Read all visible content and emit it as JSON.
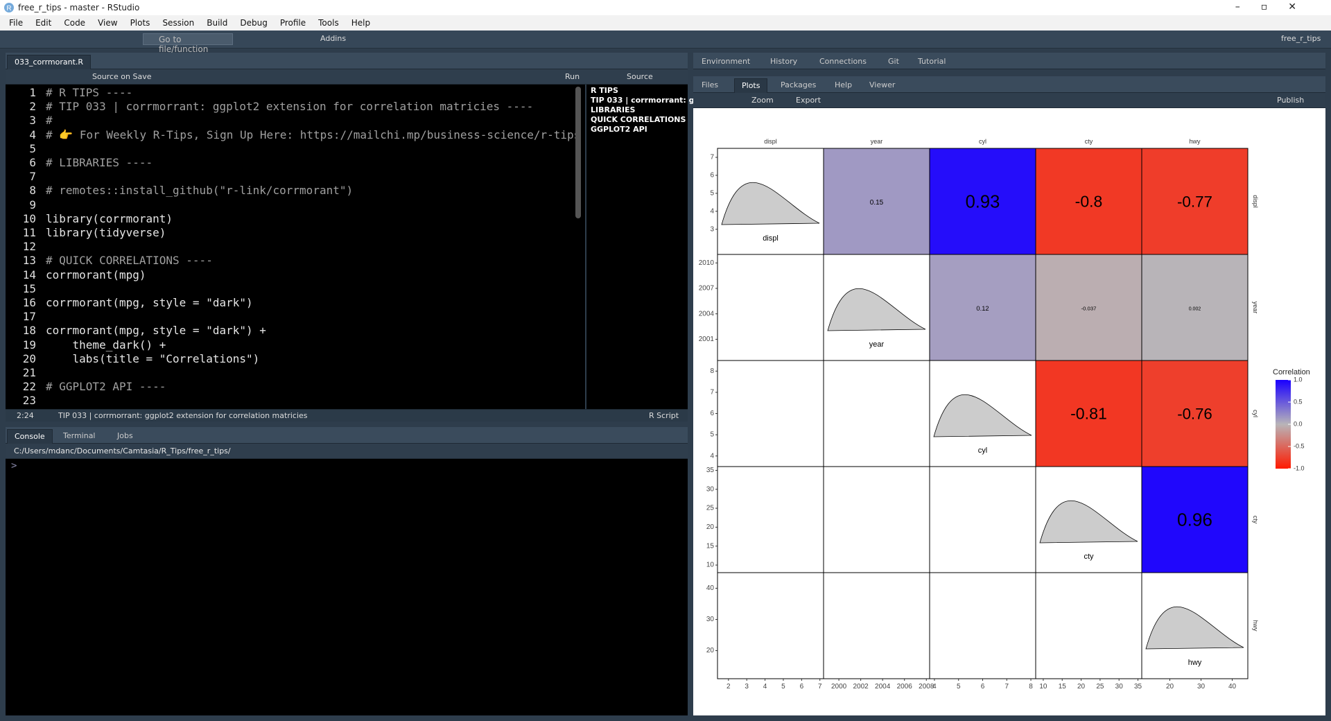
{
  "window": {
    "title": "free_r_tips - master - RStudio",
    "project": "free_r_tips"
  },
  "menu": [
    "File",
    "Edit",
    "Code",
    "View",
    "Plots",
    "Session",
    "Build",
    "Debug",
    "Profile",
    "Tools",
    "Help"
  ],
  "toolbar": {
    "goto": "Go to file/function",
    "addins": "Addins"
  },
  "editor": {
    "tab": "033_corrmorant.R",
    "source_on_save": "Source on Save",
    "run": "Run",
    "source": "Source",
    "lines": [
      {
        "number": 1,
        "text": "# R TIPS ----",
        "style": "comment"
      },
      {
        "number": 2,
        "text": "# TIP 033 | corrmorrant: ggplot2 extension for correlation matricies ----",
        "style": "comment"
      },
      {
        "number": 3,
        "text": "#",
        "style": "comment"
      },
      {
        "number": 4,
        "text": "# 👉 For Weekly R-Tips, Sign Up Here: https://mailchi.mp/business-science/r-tips",
        "style": "comment"
      },
      {
        "number": 5
      },
      {
        "number": 6,
        "text": "# LIBRARIES ----",
        "style": "comment"
      },
      {
        "number": 7
      },
      {
        "number": 8,
        "text": "# remotes::install_github(\"r-link/corrmorant\")",
        "style": "comment"
      },
      {
        "number": 9
      },
      {
        "number": 10,
        "text": "library(corrmorant)",
        "style": "code"
      },
      {
        "number": 11,
        "text": "library(tidyverse)",
        "style": "code"
      },
      {
        "number": 12
      },
      {
        "number": 13,
        "text": "# QUICK CORRELATIONS ----",
        "style": "comment"
      },
      {
        "number": 14,
        "text": "corrmorant(mpg)",
        "style": "code"
      },
      {
        "number": 15
      },
      {
        "number": 16,
        "text": "corrmorant(mpg, style = \"dark\")",
        "style": "code"
      },
      {
        "number": 17
      },
      {
        "number": 18,
        "text": "corrmorant(mpg, style = \"dark\") +",
        "style": "code"
      },
      {
        "number": 19,
        "text": "    theme_dark() +",
        "style": "code"
      },
      {
        "number": 20,
        "text": "    labs(title = \"Correlations\")",
        "style": "code"
      },
      {
        "number": 21
      },
      {
        "number": 22,
        "text": "# GGPLOT2 API ----",
        "style": "comment"
      },
      {
        "number": 23
      }
    ],
    "outline": [
      "R TIPS",
      "TIP 033 | corrmorrant: g...",
      "LIBRARIES",
      "QUICK CORRELATIONS",
      "GGPLOT2 API"
    ],
    "position": "2:24",
    "scope": "TIP 033 | corrmorrant: ggplot2 extension for correlation matricies",
    "file_type": "R Script"
  },
  "console": {
    "tabs": [
      "Console",
      "Terminal",
      "Jobs"
    ],
    "path": "C:/Users/mdanc/Documents/Camtasia/R_Tips/free_r_tips/",
    "prompt": ">"
  },
  "env_pane": {
    "tabs": [
      "Environment",
      "History",
      "Connections",
      "Git",
      "Tutorial"
    ]
  },
  "files_pane": {
    "tabs": [
      "Files",
      "Plots",
      "Packages",
      "Help",
      "Viewer"
    ],
    "zoom": "Zoom",
    "export": "Export",
    "publish": "Publish"
  },
  "plot": {
    "variables": [
      {
        "name": "displ",
        "xlim": [
          1.4,
          7.2
        ],
        "xticks": [
          2,
          3,
          4,
          5,
          6,
          7
        ],
        "ylim": [
          1.6,
          7.5
        ],
        "yticks": [
          3,
          4,
          5,
          6,
          7
        ]
      },
      {
        "name": "year",
        "xlim": [
          1998.6,
          2008.3
        ],
        "xticks": [
          2000,
          2002,
          2004,
          2006,
          2008
        ],
        "ylim": [
          1998.5,
          2011
        ],
        "yticks": [
          2001,
          2004,
          2007,
          2010
        ]
      },
      {
        "name": "cyl",
        "xlim": [
          3.8,
          8.2
        ],
        "xticks": [
          4,
          5,
          6,
          7,
          8
        ],
        "ylim": [
          3.5,
          8.5
        ],
        "yticks": [
          4,
          5,
          6,
          7,
          8
        ]
      },
      {
        "name": "cty",
        "xlim": [
          8,
          36
        ],
        "xticks": [
          10,
          15,
          20,
          25,
          30,
          35
        ],
        "ylim": [
          8,
          36
        ],
        "yticks": [
          10,
          15,
          20,
          25,
          30,
          35
        ]
      },
      {
        "name": "hwy",
        "xlim": [
          11,
          45
        ],
        "xticks": [
          20,
          30,
          40
        ],
        "ylim": [
          11,
          45
        ],
        "yticks": [
          20,
          30,
          40
        ]
      }
    ],
    "correlations": [
      [
        null,
        0.15,
        0.93,
        -0.8,
        -0.77
      ],
      [
        null,
        null,
        0.12,
        -0.037,
        0.002
      ],
      [
        null,
        null,
        null,
        -0.81,
        -0.76
      ],
      [
        null,
        null,
        null,
        null,
        0.96
      ],
      [
        null,
        null,
        null,
        null,
        null
      ]
    ],
    "legend": {
      "title": "Correlation",
      "lim": [
        -1,
        1
      ],
      "ticks": [
        {
          "value": 1,
          "label": "1.0"
        },
        0.5,
        {
          "value": 0,
          "label": "0.0"
        },
        -0.5,
        {
          "value": -1,
          "label": "-1.0"
        }
      ],
      "colors": [
        "#ff1a00",
        "#b8b4b8",
        "#1a00ff"
      ]
    }
  }
}
